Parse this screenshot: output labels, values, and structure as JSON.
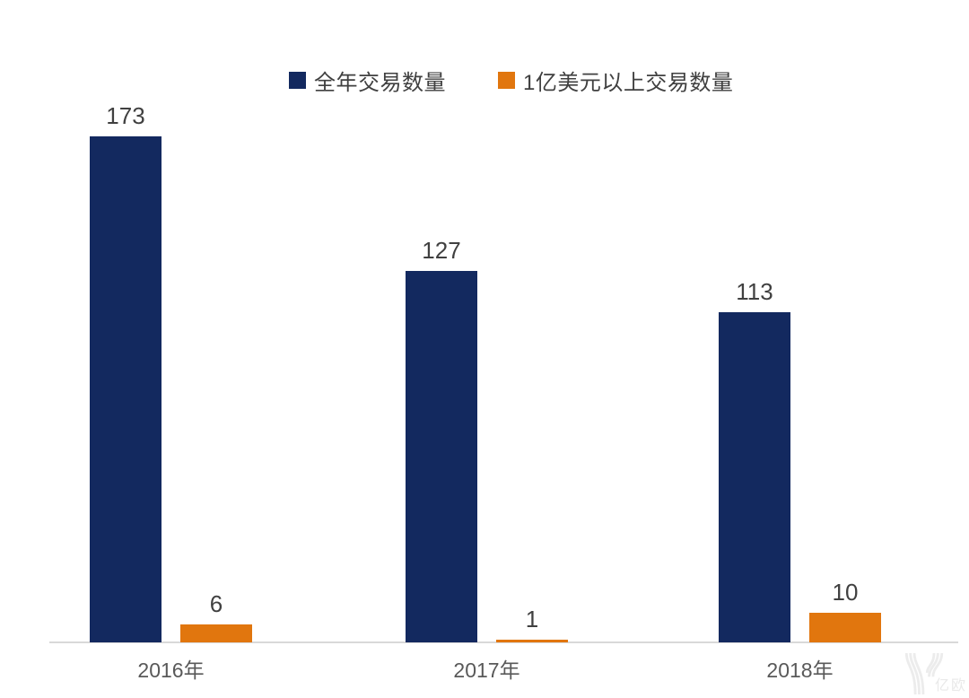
{
  "chart_data": {
    "type": "bar",
    "categories": [
      "2016年",
      "2017年",
      "2018年"
    ],
    "series": [
      {
        "name": "全年交易数量",
        "color": "#13295f",
        "values": [
          173,
          127,
          113
        ]
      },
      {
        "name": "1亿美元以上交易数量",
        "color": "#e1760e",
        "values": [
          6,
          1,
          10
        ]
      }
    ],
    "title": "",
    "xlabel": "",
    "ylabel": "",
    "ylim": [
      0,
      180
    ],
    "grid": false,
    "legend_position": "top",
    "data_labels": true,
    "axis_line_color": "#d9d9d9",
    "value_label_color": "#404040",
    "category_label_color": "#595959"
  },
  "watermark": {
    "text": "亿欧",
    "color": "#e9e9e9"
  }
}
